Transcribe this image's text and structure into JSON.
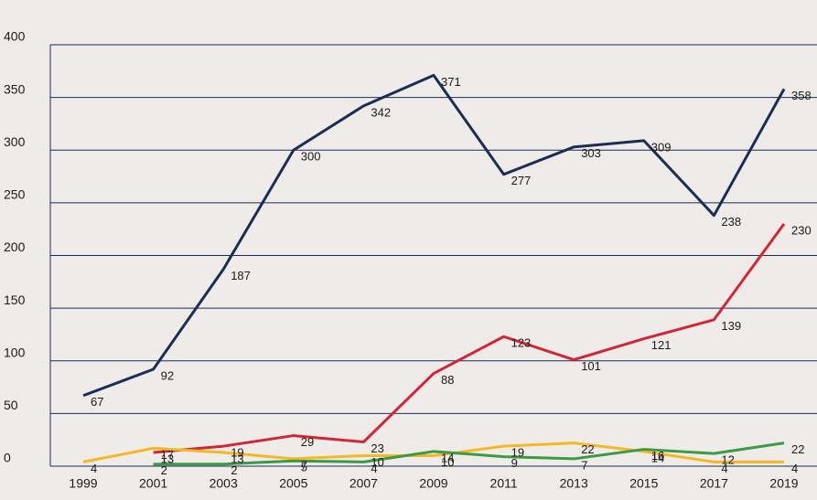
{
  "chart_data": {
    "type": "line",
    "categories": [
      "1999",
      "2001",
      "2003",
      "2005",
      "2007",
      "2009",
      "2011",
      "2013",
      "2015",
      "2017",
      "2019"
    ],
    "series": [
      {
        "color": "#1c2d54",
        "values": [
          67,
          92,
          187,
          300,
          342,
          371,
          277,
          303,
          309,
          238,
          358
        ]
      },
      {
        "color": "#d0263a",
        "values": [
          null,
          13,
          19,
          29,
          23,
          88,
          123,
          101,
          121,
          139,
          230
        ]
      },
      {
        "color": "#f4b824",
        "values": [
          4,
          17,
          13,
          7,
          10,
          10,
          19,
          22,
          14,
          4,
          4
        ]
      },
      {
        "color": "#3a9a47",
        "values": [
          null,
          2,
          2,
          5,
          4,
          14,
          9,
          7,
          16,
          12,
          22
        ]
      }
    ],
    "ylim": [
      0,
      400
    ],
    "yticks": [
      0,
      50,
      100,
      150,
      200,
      250,
      300,
      350,
      400
    ],
    "grid": true
  }
}
